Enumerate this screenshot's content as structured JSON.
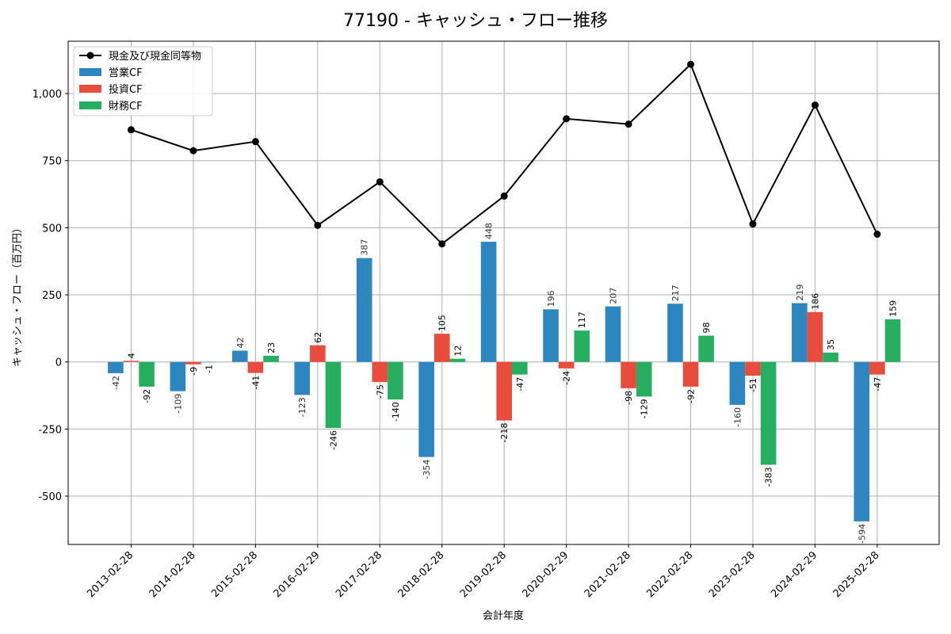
{
  "chart_data": {
    "type": "bar",
    "title": "77190 - キャッシュ・フロー推移",
    "xlabel": "会計年度",
    "ylabel": "キャッシュ・フロー（百万円）",
    "categories": [
      "2013-02-28",
      "2014-02-28",
      "2015-02-28",
      "2016-02-29",
      "2017-02-28",
      "2018-02-28",
      "2019-02-28",
      "2020-02-29",
      "2021-02-28",
      "2022-02-28",
      "2023-02-28",
      "2024-02-29",
      "2025-02-28"
    ],
    "ylim": [
      -680,
      1195
    ],
    "yticks": [
      -500,
      -250,
      0,
      250,
      500,
      750,
      1000
    ],
    "ytick_labels": [
      "-500",
      "-250",
      "0",
      "250",
      "500",
      "750",
      "1,000"
    ],
    "grid": true,
    "legend_position": "top-left",
    "series": [
      {
        "name": "営業CF",
        "kind": "bar",
        "color": "#2e86c1",
        "values": [
          -42,
          -109,
          42,
          -123,
          387,
          -354,
          448,
          196,
          207,
          217,
          -160,
          219,
          -594
        ],
        "labels": [
          "-42",
          "-109",
          "42",
          "-123",
          "387",
          "-354",
          "448",
          "196",
          "207",
          "217",
          "-160",
          "219",
          "-594"
        ]
      },
      {
        "name": "投資CF",
        "kind": "bar",
        "color": "#e74c3c",
        "values": [
          4,
          -9,
          -41,
          62,
          -75,
          105,
          -218,
          -24,
          -98,
          -92,
          -51,
          186,
          -47
        ],
        "labels": [
          "4",
          "-9",
          "-41",
          "62",
          "-75",
          "105",
          "-218",
          "-24",
          "-98",
          "-92",
          "-51",
          "186",
          "-47"
        ]
      },
      {
        "name": "財務CF",
        "kind": "bar",
        "color": "#27ae60",
        "values": [
          -92,
          -1,
          23,
          -246,
          -140,
          12,
          -47,
          117,
          -129,
          98,
          -383,
          35,
          159
        ],
        "labels": [
          "-92",
          "-1",
          "23",
          "-246",
          "-140",
          "12",
          "-47",
          "117",
          "-129",
          "98",
          "-383",
          "35",
          "159"
        ]
      },
      {
        "name": "現金及び現金同等物",
        "kind": "line",
        "color": "#000000",
        "values": [
          865,
          787,
          821,
          509,
          671,
          440,
          618,
          906,
          886,
          1109,
          514,
          957,
          476
        ]
      }
    ]
  }
}
